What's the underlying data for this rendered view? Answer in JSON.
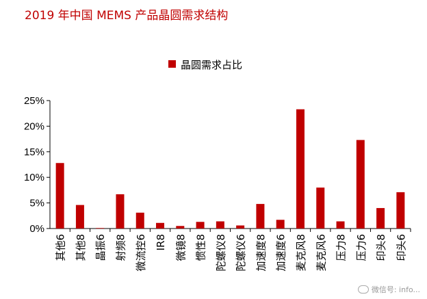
{
  "title": "2019 年中国 MEMS 产品晶圆需求结构",
  "watermark": "微信号: info...",
  "colors": {
    "bar": "#c00000",
    "title": "#c00000",
    "axis": "#000000"
  },
  "chart_data": {
    "type": "bar",
    "title": "2019 年中国 MEMS 产品晶圆需求结构",
    "categories": [
      "其他6",
      "其他8",
      "晶振6",
      "射频8",
      "微流控6",
      "IR8",
      "微镜8",
      "惯性8",
      "陀螺仪8",
      "陀螺仪6",
      "加速度8",
      "加速度6",
      "麦克风8",
      "麦克风6",
      "压力8",
      "压力6",
      "印头8",
      "印头6"
    ],
    "series": [
      {
        "name": "晶圆需求占比",
        "values": [
          12.8,
          4.6,
          0.1,
          6.7,
          3.1,
          1.1,
          0.5,
          1.3,
          1.4,
          0.6,
          4.8,
          1.7,
          23.3,
          8.0,
          1.4,
          17.3,
          4.0,
          7.1
        ]
      }
    ],
    "ylim": [
      0,
      25
    ],
    "yticks": [
      "0%",
      "5%",
      "10%",
      "15%",
      "20%",
      "25%"
    ],
    "ytick_values": [
      0,
      5,
      10,
      15,
      20,
      25
    ],
    "xlabel": "",
    "ylabel": "",
    "grid": false,
    "legend": "top-center"
  }
}
